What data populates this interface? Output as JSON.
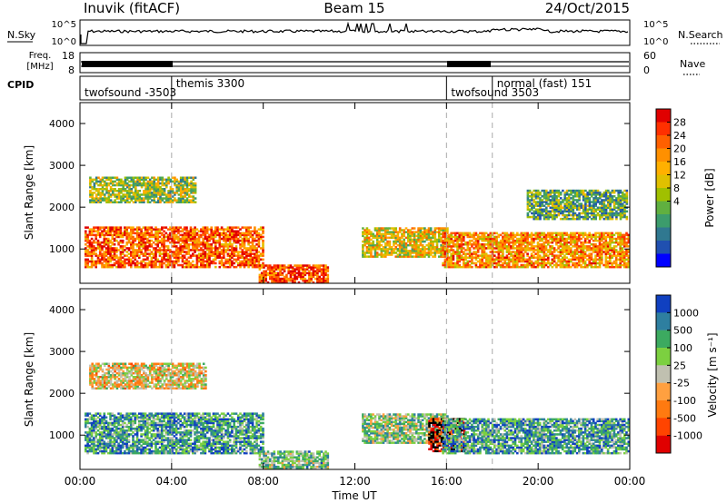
{
  "header": {
    "station": "Inuvik (fitACF)",
    "beam": "Beam 15",
    "date": "24/Oct/2015"
  },
  "top_panels": {
    "nsky_label": "N.Sky",
    "nsky_ticks": [
      "10^5",
      "10^0"
    ],
    "nsearch_label": "N.Search",
    "nsearch_ticks": [
      "10^5",
      "10^0"
    ],
    "freq_label_1": "Freq.",
    "freq_label_2": "[MHz]",
    "freq_ticks": [
      "18",
      "8"
    ],
    "nave_label": "Nave",
    "nave_ticks": [
      "60",
      "0"
    ],
    "cpid_label": "CPID",
    "cpid_segments": [
      {
        "label": "twofsound -3503",
        "start_h": 0.0
      },
      {
        "label": "themis 3300",
        "start_h": 4.0
      },
      {
        "label": "twofsound 3503",
        "start_h": 16.0
      },
      {
        "label": "normal (fast) 151",
        "start_h": 18.0
      }
    ]
  },
  "chart_data": [
    {
      "type": "heatmap",
      "panel": "power",
      "xlabel": "",
      "ylabel": "Slant Range [km]",
      "xlim": [
        0,
        24
      ],
      "ylim": [
        180,
        4500
      ],
      "yticks": [
        "1000",
        "2000",
        "3000",
        "4000"
      ],
      "colorbar_label": "Power [dB]",
      "colorbar_ticks": [
        "28",
        "24",
        "20",
        "16",
        "12",
        "8",
        "4"
      ],
      "colorbar_colors": [
        "#e00000",
        "#ff3000",
        "#ff6000",
        "#ff9000",
        "#ffb000",
        "#e0c000",
        "#a0c000",
        "#60b040",
        "#3c9c6c",
        "#307890",
        "#2050b0",
        "#0000ff"
      ],
      "echo_bands": [
        {
          "t0": 0.2,
          "t1": 8.0,
          "r0": 550,
          "r1": 1500,
          "level": 0.8
        },
        {
          "t0": 0.4,
          "t1": 5.0,
          "r0": 2100,
          "r1": 2700,
          "level": 0.45
        },
        {
          "t0": 7.8,
          "t1": 10.8,
          "r0": 180,
          "r1": 600,
          "level": 0.85
        },
        {
          "t0": 12.3,
          "t1": 16.0,
          "r0": 800,
          "r1": 1500,
          "level": 0.55
        },
        {
          "t0": 15.8,
          "t1": 23.9,
          "r0": 550,
          "r1": 1400,
          "level": 0.7
        },
        {
          "t0": 19.5,
          "t1": 23.9,
          "r0": 1700,
          "r1": 2400,
          "level": 0.35
        }
      ]
    },
    {
      "type": "heatmap",
      "panel": "velocity",
      "xlabel": "Time UT",
      "ylabel": "Slant Range [km]",
      "xlim": [
        0,
        24
      ],
      "ylim": [
        180,
        4500
      ],
      "xticks": [
        "00:00",
        "04:00",
        "08:00",
        "12:00",
        "16:00",
        "20:00",
        "00:00"
      ],
      "yticks": [
        "1000",
        "2000",
        "3000",
        "4000"
      ],
      "colorbar_label": "Velocity [m s⁻¹]",
      "colorbar_ticks": [
        "1000",
        "500",
        "100",
        "25",
        "-25",
        "-100",
        "-500",
        "-1000"
      ],
      "colorbar_colors": [
        "#1040c0",
        "#2e7fa0",
        "#3caa60",
        "#7cd040",
        "#c0c0b0",
        "#ffa040",
        "#ff7a10",
        "#ff4400",
        "#e00000"
      ],
      "echo_bands": [
        {
          "t0": 0.2,
          "t1": 8.0,
          "r0": 550,
          "r1": 1500,
          "level": 0.75
        },
        {
          "t0": 0.4,
          "t1": 5.5,
          "r0": 2100,
          "r1": 2700,
          "level": 0.45
        },
        {
          "t0": 7.8,
          "t1": 10.8,
          "r0": 180,
          "r1": 600,
          "level": 0.65
        },
        {
          "t0": 12.3,
          "t1": 16.0,
          "r0": 800,
          "r1": 1500,
          "level": 0.6
        },
        {
          "t0": 15.2,
          "t1": 16.8,
          "r0": 600,
          "r1": 1400,
          "level": 0.05
        },
        {
          "t0": 15.8,
          "t1": 23.9,
          "r0": 550,
          "r1": 1400,
          "level": 0.75
        }
      ]
    }
  ]
}
